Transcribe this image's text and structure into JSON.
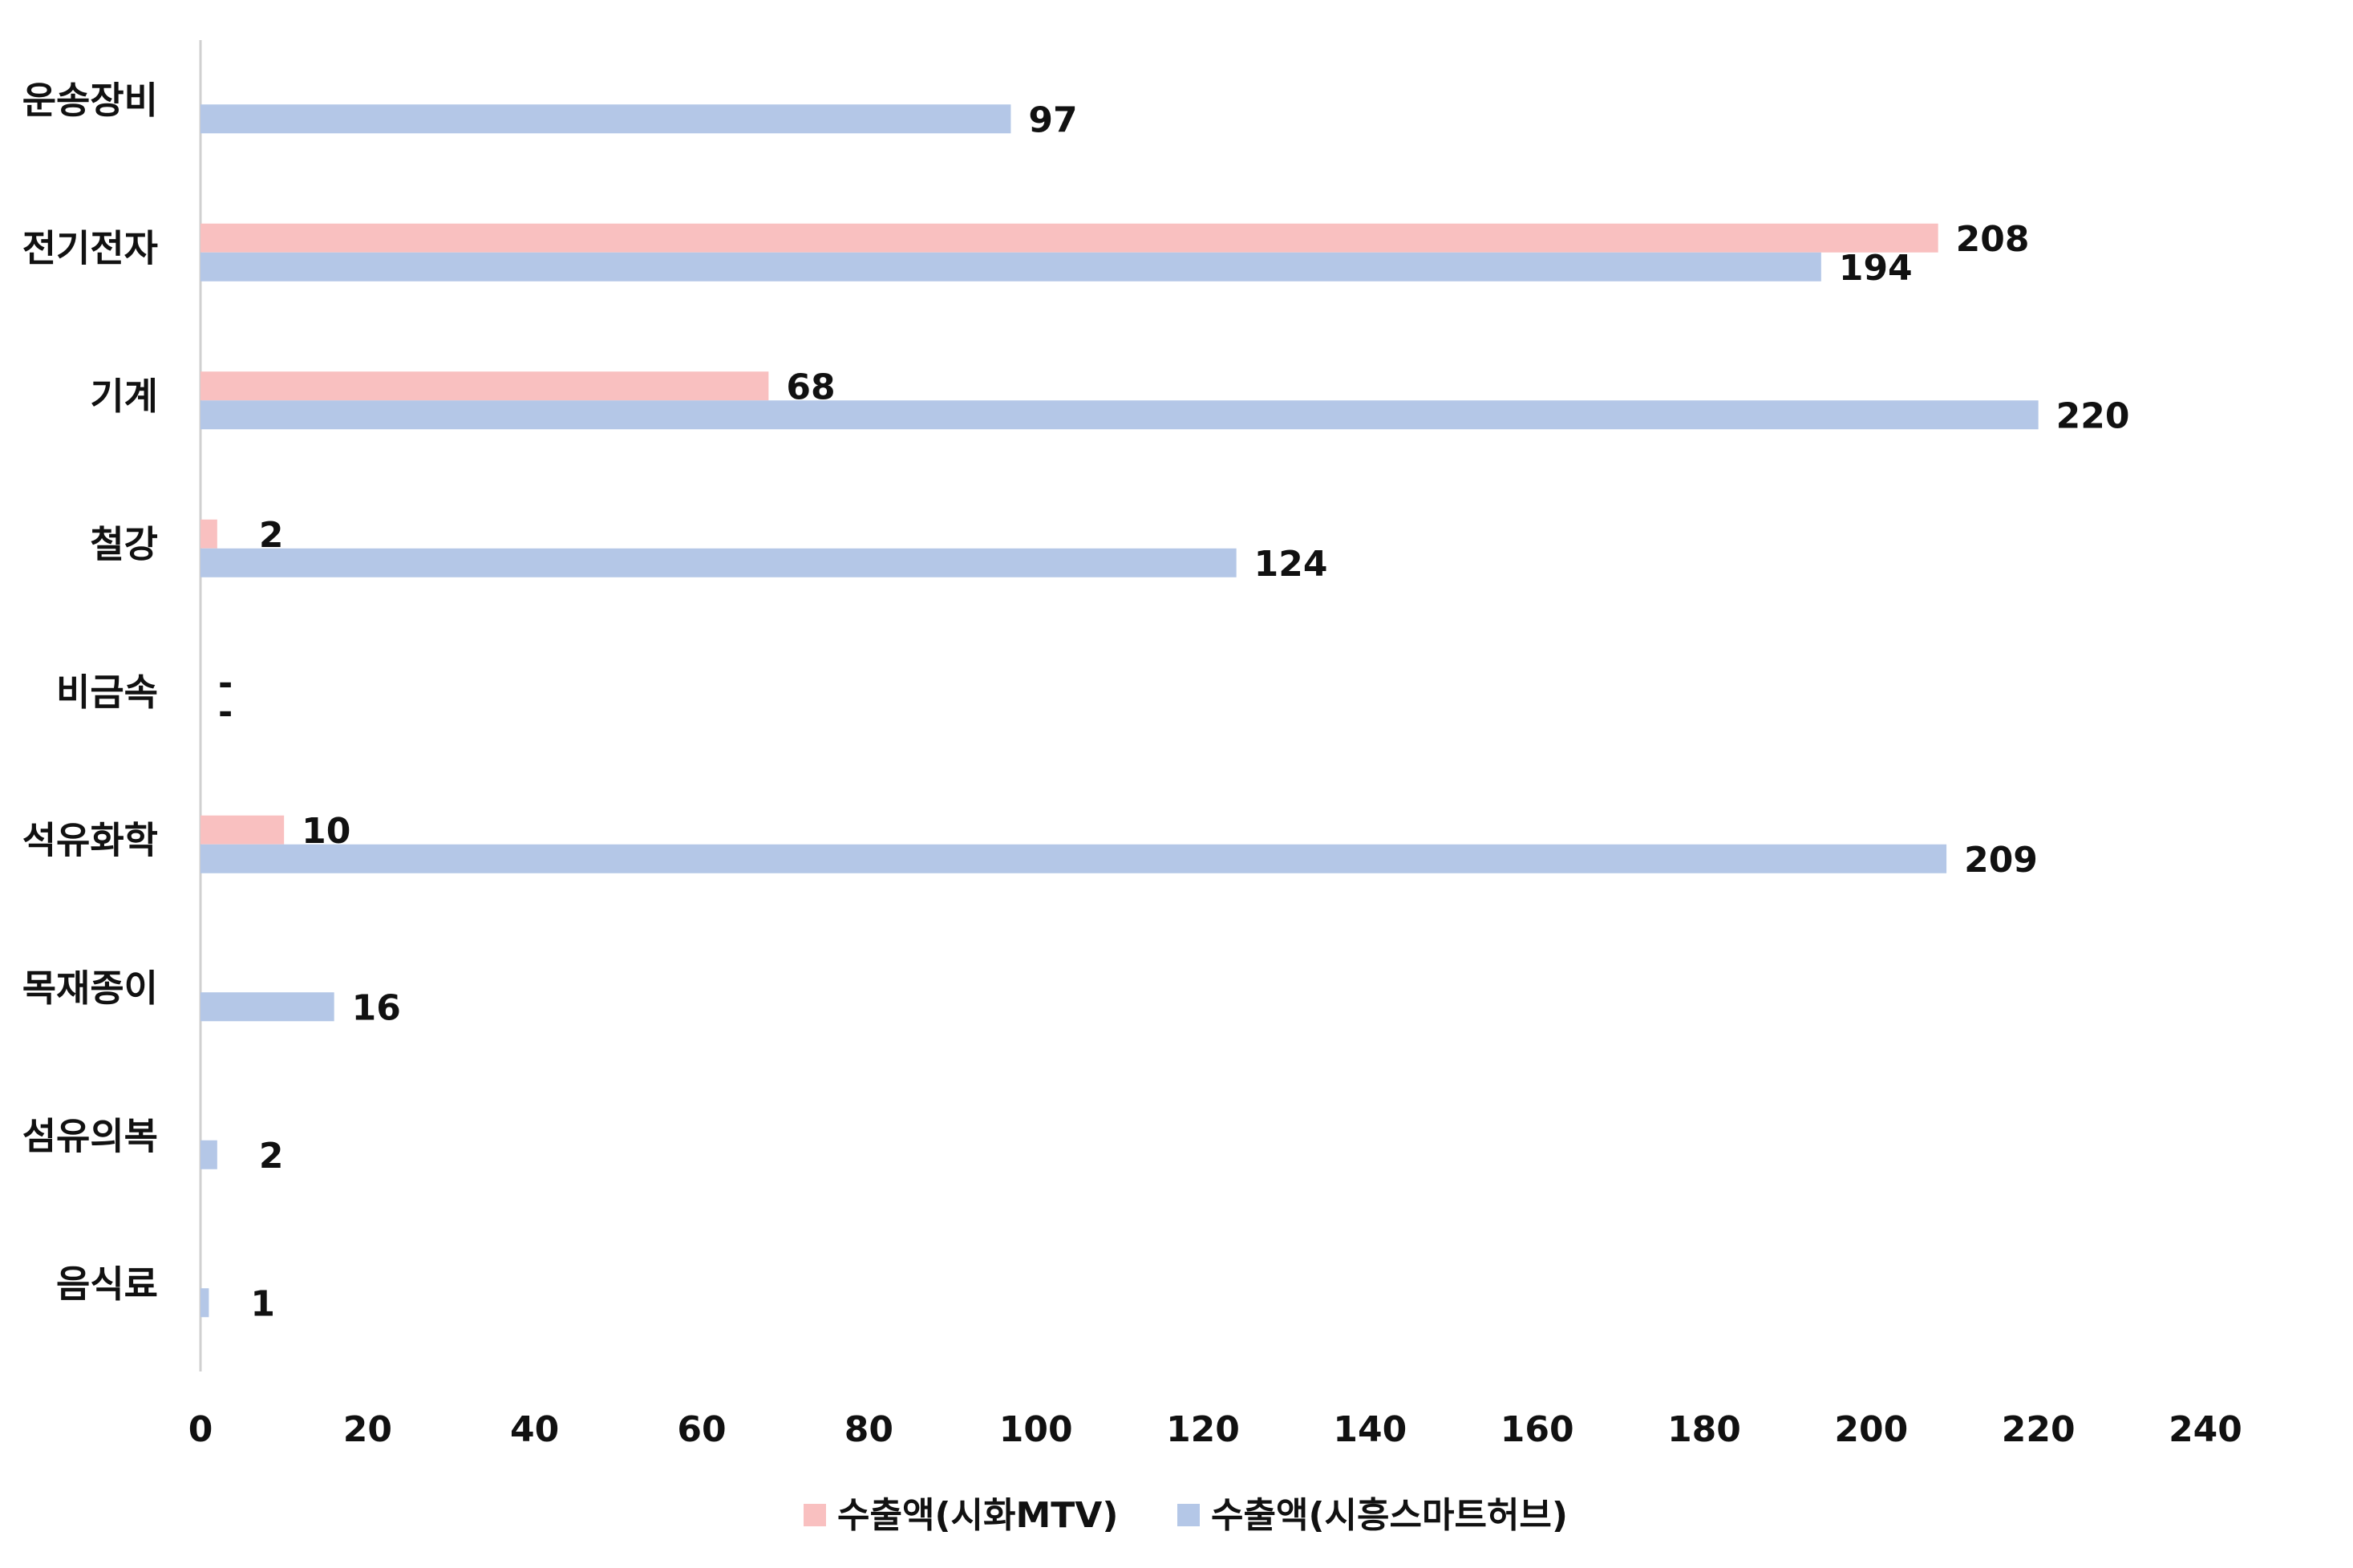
{
  "chart_data": {
    "type": "bar",
    "orientation": "horizontal",
    "categories": [
      "운송장비",
      "전기전자",
      "기계",
      "철강",
      "비금속",
      "석유화학",
      "목재종이",
      "섬유의복",
      "음식료"
    ],
    "series": [
      {
        "name": "수출액(시화MTV)",
        "color": "#F9C0C0",
        "values": [
          null,
          208,
          68,
          2,
          null,
          10,
          null,
          null,
          null
        ],
        "labels": [
          "",
          "208",
          "68",
          "2",
          "-",
          "10",
          "",
          "",
          ""
        ]
      },
      {
        "name": "수출액(시흥스마트허브)",
        "color": "#B4C7E7",
        "values": [
          97,
          194,
          220,
          124,
          null,
          209,
          16,
          2,
          1
        ],
        "labels": [
          "97",
          "194",
          "220",
          "124",
          "-",
          "209",
          "16",
          "2",
          "1"
        ]
      }
    ],
    "xlim": [
      0,
      240
    ],
    "xticks": [
      "0",
      "20",
      "40",
      "60",
      "80",
      "100",
      "120",
      "140",
      "160",
      "180",
      "200",
      "220",
      "240"
    ],
    "title": "",
    "xlabel": "",
    "ylabel": "",
    "grid": false,
    "legend_position": "bottom"
  }
}
